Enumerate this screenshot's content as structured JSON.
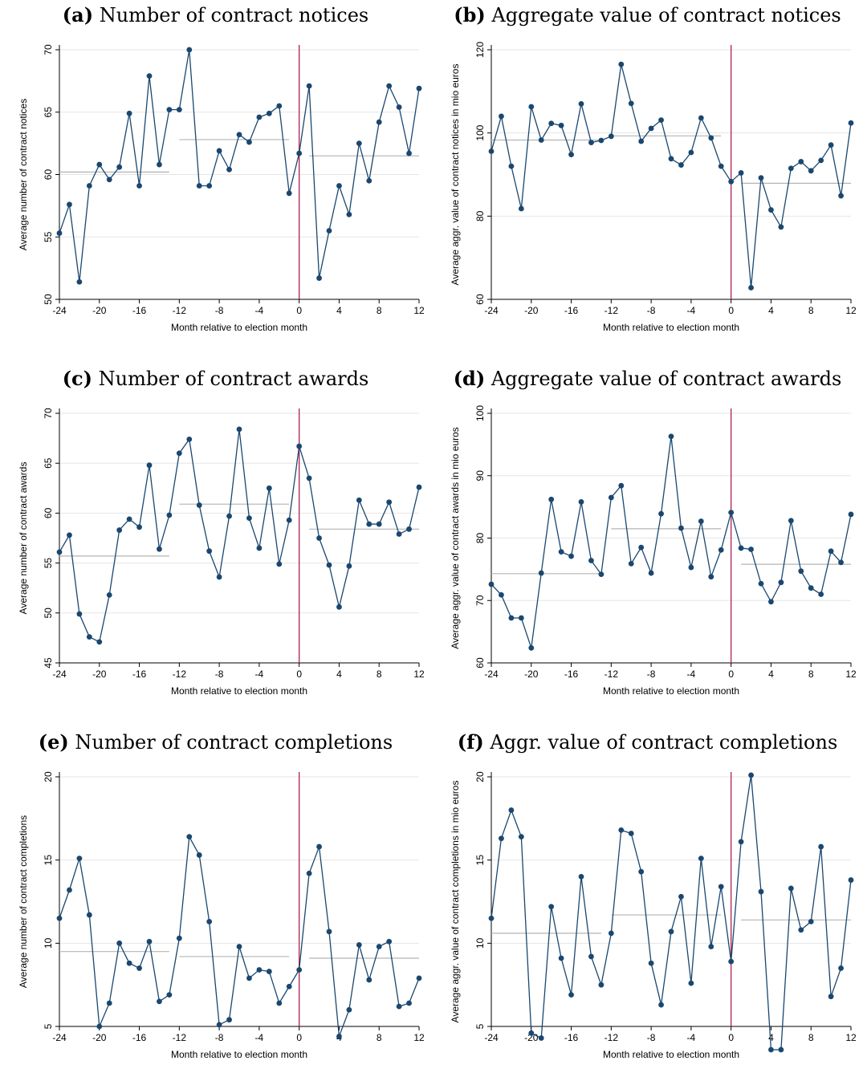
{
  "figure": {
    "colors": {
      "series": "#1a476f",
      "election_line": "#b02050",
      "mean_lines": "#b4b4b4",
      "gridlines": "#e5e5e5"
    }
  },
  "chart_data": [
    {
      "type": "line",
      "letter": "(a)",
      "title": "Number of contract notices",
      "xlabel": "Month relative to election month",
      "ylabel": "Average number of contract notices",
      "xlim": [
        -24,
        12
      ],
      "ylim": [
        50,
        70
      ],
      "xticks": [
        -24,
        -20,
        -16,
        -12,
        -8,
        -4,
        0,
        4,
        8,
        12
      ],
      "yticks": [
        50,
        55,
        60,
        65,
        70
      ],
      "grid": true,
      "x": [
        -24,
        -23,
        -22,
        -21,
        -20,
        -19,
        -18,
        -17,
        -16,
        -15,
        -14,
        -13,
        -12,
        -11,
        -10,
        -9,
        -8,
        -7,
        -6,
        -5,
        -4,
        -3,
        -2,
        -1,
        0,
        1,
        2,
        3,
        4,
        5,
        6,
        7,
        8,
        9,
        10,
        11,
        12
      ],
      "values": [
        55.3,
        57.6,
        51.4,
        59.1,
        60.8,
        59.6,
        60.6,
        64.9,
        59.1,
        67.9,
        60.8,
        65.2,
        65.2,
        70.0,
        59.1,
        59.1,
        61.9,
        60.4,
        63.2,
        62.6,
        64.6,
        64.9,
        65.5,
        58.5,
        61.7,
        67.1,
        51.7,
        55.5,
        59.1,
        56.8,
        62.5,
        59.5,
        64.2,
        67.1,
        65.4,
        61.7,
        66.9
      ],
      "election_month": 0,
      "period_means": [
        {
          "from": -24,
          "to": -13,
          "value": 60.2
        },
        {
          "from": -12,
          "to": -1,
          "value": 62.8
        },
        {
          "from": 1,
          "to": 12,
          "value": 61.5
        }
      ]
    },
    {
      "type": "line",
      "letter": "(b)",
      "title": "Aggregate value of contract notices",
      "xlabel": "Month relative to election month",
      "ylabel": "Average aggr. value of contract notices in mio euros",
      "xlim": [
        -24,
        12
      ],
      "ylim": [
        60,
        120
      ],
      "xticks": [
        -24,
        -20,
        -16,
        -12,
        -8,
        -4,
        0,
        4,
        8,
        12
      ],
      "yticks": [
        60,
        80,
        100,
        120
      ],
      "grid": true,
      "x": [
        -24,
        -23,
        -22,
        -21,
        -20,
        -19,
        -18,
        -17,
        -16,
        -15,
        -14,
        -13,
        -12,
        -11,
        -10,
        -9,
        -8,
        -7,
        -6,
        -5,
        -4,
        -3,
        -2,
        -1,
        0,
        1,
        2,
        3,
        4,
        5,
        6,
        7,
        8,
        9,
        10,
        11,
        12
      ],
      "values": [
        95.6,
        104.0,
        92.0,
        81.8,
        106.3,
        98.3,
        102.3,
        101.8,
        94.8,
        107.0,
        97.7,
        98.2,
        99.2,
        116.5,
        107.1,
        98.0,
        101.1,
        103.1,
        93.8,
        92.3,
        95.3,
        103.6,
        98.8,
        92.0,
        88.3,
        90.4,
        62.8,
        89.2,
        81.5,
        77.4,
        91.5,
        93.1,
        90.9,
        93.4,
        97.1,
        84.9,
        102.4
      ],
      "election_month": 0,
      "period_means": [
        {
          "from": -24,
          "to": -13,
          "value": 98.3
        },
        {
          "from": -12,
          "to": -1,
          "value": 99.3
        },
        {
          "from": 1,
          "to": 12,
          "value": 87.9
        }
      ]
    },
    {
      "type": "line",
      "letter": "(c)",
      "title": "Number of contract awards",
      "xlabel": "Month relative to election month",
      "ylabel": "Average number of contract awards",
      "xlim": [
        -24,
        12
      ],
      "ylim": [
        45,
        70
      ],
      "xticks": [
        -24,
        -20,
        -16,
        -12,
        -8,
        -4,
        0,
        4,
        8,
        12
      ],
      "yticks": [
        45,
        50,
        55,
        60,
        65,
        70
      ],
      "grid": true,
      "x": [
        -24,
        -23,
        -22,
        -21,
        -20,
        -19,
        -18,
        -17,
        -16,
        -15,
        -14,
        -13,
        -12,
        -11,
        -10,
        -9,
        -8,
        -7,
        -6,
        -5,
        -4,
        -3,
        -2,
        -1,
        0,
        1,
        2,
        3,
        4,
        5,
        6,
        7,
        8,
        9,
        10,
        11,
        12
      ],
      "values": [
        56.1,
        57.8,
        49.9,
        47.6,
        47.1,
        51.8,
        58.3,
        59.4,
        58.6,
        64.8,
        56.4,
        59.8,
        66.0,
        67.4,
        60.8,
        56.2,
        53.6,
        59.7,
        68.4,
        59.5,
        56.5,
        62.5,
        54.9,
        59.3,
        66.7,
        63.5,
        57.5,
        54.8,
        50.6,
        54.7,
        61.3,
        58.9,
        58.9,
        61.1,
        57.9,
        58.4,
        62.6
      ],
      "election_month": 0,
      "period_means": [
        {
          "from": -24,
          "to": -13,
          "value": 55.7
        },
        {
          "from": -12,
          "to": -1,
          "value": 60.9
        },
        {
          "from": 1,
          "to": 12,
          "value": 58.4
        }
      ]
    },
    {
      "type": "line",
      "letter": "(d)",
      "title": "Aggregate value of contract awards",
      "xlabel": "Month relative to election month",
      "ylabel": "Average aggr. value of contract awards in mio euros",
      "xlim": [
        -24,
        12
      ],
      "ylim": [
        60,
        100
      ],
      "xticks": [
        -24,
        -20,
        -16,
        -12,
        -8,
        -4,
        0,
        4,
        8,
        12
      ],
      "yticks": [
        60,
        70,
        80,
        90,
        100
      ],
      "grid": true,
      "x": [
        -24,
        -23,
        -22,
        -21,
        -20,
        -19,
        -18,
        -17,
        -16,
        -15,
        -14,
        -13,
        -12,
        -11,
        -10,
        -9,
        -8,
        -7,
        -6,
        -5,
        -4,
        -3,
        -2,
        -1,
        0,
        1,
        2,
        3,
        4,
        5,
        6,
        7,
        8,
        9,
        10,
        11,
        12
      ],
      "values": [
        72.6,
        70.9,
        67.2,
        67.2,
        62.4,
        74.4,
        86.2,
        77.8,
        77.1,
        85.8,
        76.4,
        74.2,
        86.5,
        88.4,
        75.9,
        78.5,
        74.4,
        83.9,
        96.3,
        81.6,
        75.3,
        82.7,
        73.8,
        78.1,
        84.1,
        78.4,
        78.2,
        72.7,
        69.8,
        72.9,
        82.8,
        74.7,
        72.0,
        71.0,
        77.9,
        76.1,
        83.8
      ],
      "election_month": 0,
      "period_means": [
        {
          "from": -24,
          "to": -13,
          "value": 74.3
        },
        {
          "from": -12,
          "to": -1,
          "value": 81.5
        },
        {
          "from": 1,
          "to": 12,
          "value": 75.8
        }
      ]
    },
    {
      "type": "line",
      "letter": "(e)",
      "title": "Number of contract completions",
      "xlabel": "Month relative to election month",
      "ylabel": "Average number of contract completions",
      "xlim": [
        -24,
        12
      ],
      "ylim": [
        5,
        20
      ],
      "xticks": [
        -24,
        -20,
        -16,
        -12,
        -8,
        -4,
        0,
        4,
        8,
        12
      ],
      "yticks": [
        5,
        10,
        15,
        20
      ],
      "grid": true,
      "x": [
        -24,
        -23,
        -22,
        -21,
        -20,
        -19,
        -18,
        -17,
        -16,
        -15,
        -14,
        -13,
        -12,
        -11,
        -10,
        -9,
        -8,
        -7,
        -6,
        -5,
        -4,
        -3,
        -2,
        -1,
        0,
        1,
        2,
        3,
        4,
        5,
        6,
        7,
        8,
        9,
        10,
        11,
        12
      ],
      "values": [
        11.5,
        13.2,
        15.1,
        11.7,
        5.0,
        6.4,
        10.0,
        8.8,
        8.5,
        10.1,
        6.5,
        6.9,
        10.3,
        16.4,
        15.3,
        11.3,
        5.1,
        5.4,
        9.8,
        7.9,
        8.4,
        8.3,
        6.4,
        7.4,
        8.4,
        14.2,
        15.8,
        10.7,
        4.4,
        6.0,
        9.9,
        7.8,
        9.8,
        10.1,
        6.2,
        6.4,
        7.9
      ],
      "election_month": 0,
      "period_means": [
        {
          "from": -24,
          "to": -13,
          "value": 9.5
        },
        {
          "from": -12,
          "to": -1,
          "value": 9.2
        },
        {
          "from": 1,
          "to": 12,
          "value": 9.1
        }
      ]
    },
    {
      "type": "line",
      "letter": "(f)",
      "title": "Aggr. value of contract completions",
      "xlabel": "Month relative to election month",
      "ylabel": "Average aggr. value of contract completions in mio euros",
      "xlim": [
        -24,
        12
      ],
      "ylim": [
        5,
        20
      ],
      "xticks": [
        -24,
        -20,
        -16,
        -12,
        -8,
        -4,
        0,
        4,
        8,
        12
      ],
      "yticks": [
        5,
        10,
        15,
        20
      ],
      "grid": true,
      "x": [
        -24,
        -23,
        -22,
        -21,
        -20,
        -19,
        -18,
        -17,
        -16,
        -15,
        -14,
        -13,
        -12,
        -11,
        -10,
        -9,
        -8,
        -7,
        -6,
        -5,
        -4,
        -3,
        -2,
        -1,
        0,
        1,
        2,
        3,
        4,
        5,
        6,
        7,
        8,
        9,
        10,
        11,
        12
      ],
      "values": [
        11.5,
        16.3,
        18.0,
        16.4,
        4.6,
        4.3,
        12.2,
        9.1,
        6.9,
        14.0,
        9.2,
        7.5,
        10.6,
        16.8,
        16.6,
        14.3,
        8.8,
        6.3,
        10.7,
        12.8,
        7.6,
        15.1,
        9.8,
        13.4,
        8.9,
        16.1,
        20.1,
        13.1,
        3.6,
        3.6,
        13.3,
        10.8,
        11.3,
        15.8,
        6.8,
        8.5,
        13.8
      ],
      "election_month": 0,
      "period_means": [
        {
          "from": -24,
          "to": -13,
          "value": 10.6
        },
        {
          "from": -12,
          "to": -1,
          "value": 11.7
        },
        {
          "from": 1,
          "to": 12,
          "value": 11.4
        }
      ]
    }
  ]
}
